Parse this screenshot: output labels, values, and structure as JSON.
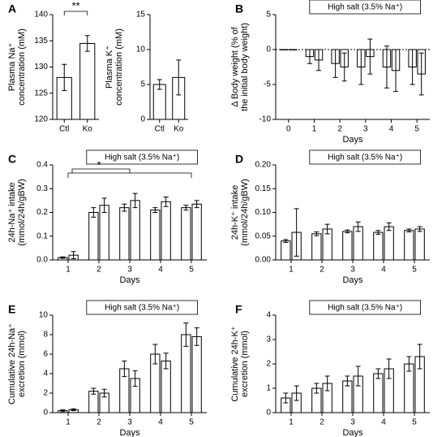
{
  "chart_data": [
    {
      "type": "bar",
      "panel": "A",
      "ylabel": [
        "Plasma Na⁺",
        "concentration (mM)"
      ],
      "categories": [
        "Ctl",
        "Ko"
      ],
      "series": [
        {
          "values": [
            128,
            134.5
          ],
          "errors": [
            2.5,
            1.5
          ]
        }
      ],
      "ylim": [
        120,
        140
      ],
      "yticks": [
        120,
        125,
        130,
        135,
        140
      ],
      "significance": "**"
    },
    {
      "type": "bar",
      "ylabel": [
        "Plasma K⁺",
        "concentration (mM)"
      ],
      "categories": [
        "Ctl",
        "Ko"
      ],
      "series": [
        {
          "values": [
            5,
            6
          ],
          "errors": [
            0.7,
            2.5
          ]
        }
      ],
      "ylim": [
        0,
        15
      ],
      "yticks": [
        0,
        5,
        10,
        15
      ]
    },
    {
      "type": "bar",
      "panel": "B",
      "ylabel": [
        "Δ Body weight (% of",
        "the initial body weight)"
      ],
      "xlabel": "Days",
      "annotation": "High salt (3.5% Na⁺)",
      "x": [
        0,
        1,
        2,
        3,
        4,
        5
      ],
      "xlim": [
        -0.5,
        5.5
      ],
      "series": [
        {
          "values": [
            0,
            -1,
            -2,
            -2.5,
            -2.5,
            -2.5
          ],
          "errors": [
            0,
            1,
            2,
            2.5,
            3,
            2.5
          ]
        },
        {
          "values": [
            0,
            -1.5,
            -2.5,
            -1,
            -3,
            -3.5
          ],
          "errors": [
            0,
            1.5,
            2,
            2.5,
            3,
            3
          ]
        }
      ],
      "ylim": [
        -10,
        5
      ],
      "yticks": [
        5,
        0,
        -5,
        -10
      ]
    },
    {
      "type": "bar",
      "panel": "C",
      "ylabel": [
        "24h-Na⁺ intake",
        "(mmol/24h/gBW)"
      ],
      "xlabel": "Days",
      "annotation": "High salt (3.5% Na⁺)",
      "significance": "*",
      "x": [
        1,
        2,
        3,
        4,
        5
      ],
      "xlim": [
        0.5,
        5.5
      ],
      "series": [
        {
          "values": [
            0.01,
            0.2,
            0.22,
            0.21,
            0.22
          ],
          "errors": [
            0.003,
            0.02,
            0.015,
            0.01,
            0.01
          ]
        },
        {
          "values": [
            0.02,
            0.23,
            0.25,
            0.245,
            0.235
          ],
          "errors": [
            0.015,
            0.03,
            0.03,
            0.02,
            0.015
          ]
        }
      ],
      "ylim": [
        0,
        0.4
      ],
      "yticks": [
        {
          "value": 0,
          "label": "0.0"
        },
        0.1,
        0.2,
        0.3,
        0.4
      ]
    },
    {
      "type": "bar",
      "panel": "D",
      "ylabel": [
        "24h-K⁺ intake",
        "(mmol/24h/gBW)"
      ],
      "xlabel": "Days",
      "annotation": "High salt (3.5% Na⁺)",
      "x": [
        1,
        2,
        3,
        4,
        5
      ],
      "xlim": [
        0.5,
        5.5
      ],
      "series": [
        {
          "values": [
            0.04,
            0.055,
            0.06,
            0.058,
            0.062
          ],
          "errors": [
            0.003,
            0.004,
            0.003,
            0.004,
            0.003
          ]
        },
        {
          "values": [
            0.058,
            0.065,
            0.07,
            0.07,
            0.065
          ],
          "errors": [
            0.05,
            0.01,
            0.01,
            0.008,
            0.005
          ]
        }
      ],
      "ylim": [
        0,
        0.2
      ],
      "yticks": [
        {
          "value": 0,
          "label": "0.00"
        },
        0.05,
        {
          "value": 0.1,
          "label": "0.10"
        },
        0.15,
        {
          "value": 0.2,
          "label": "0.20"
        }
      ]
    },
    {
      "type": "bar",
      "panel": "E",
      "ylabel": [
        "Cumulative 24h-Na⁺",
        "excretion (mmol)"
      ],
      "xlabel": "Days",
      "annotation": "High salt (3.5% Na⁺)",
      "x": [
        1,
        2,
        3,
        4,
        5
      ],
      "xlim": [
        0.5,
        5.5
      ],
      "series": [
        {
          "values": [
            0.2,
            2.2,
            4.5,
            6,
            8
          ],
          "errors": [
            0.1,
            0.3,
            0.8,
            1,
            1.2
          ]
        },
        {
          "values": [
            0.3,
            2,
            3.5,
            5.3,
            7.8
          ],
          "errors": [
            0.1,
            0.4,
            0.8,
            0.8,
            0.9
          ]
        }
      ],
      "ylim": [
        0,
        10
      ],
      "yticks": [
        0,
        2,
        4,
        6,
        8,
        10
      ]
    },
    {
      "type": "bar",
      "panel": "F",
      "ylabel": [
        "Cumulative 24h-K⁺",
        "excretion (mmol)"
      ],
      "xlabel": "Days",
      "annotation": "High salt (3.5% Na⁺)",
      "x": [
        1,
        2,
        3,
        4,
        5
      ],
      "xlim": [
        0.5,
        5.5
      ],
      "series": [
        {
          "values": [
            0.6,
            1,
            1.3,
            1.6,
            2
          ],
          "errors": [
            0.2,
            0.2,
            0.2,
            0.2,
            0.3
          ]
        },
        {
          "values": [
            0.8,
            1.2,
            1.5,
            1.8,
            2.3
          ],
          "errors": [
            0.3,
            0.3,
            0.4,
            0.4,
            0.5
          ]
        }
      ],
      "ylim": [
        0,
        4
      ],
      "yticks": [
        0,
        1,
        2,
        3,
        4
      ]
    }
  ]
}
